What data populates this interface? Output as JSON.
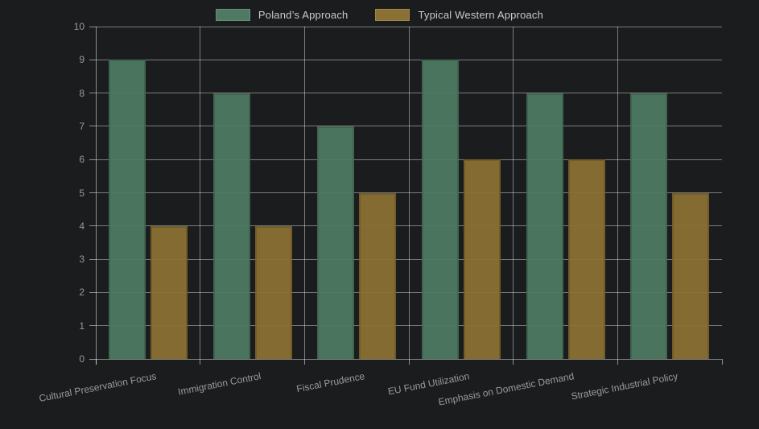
{
  "chart_data": {
    "type": "bar",
    "title": "",
    "categories": [
      "Cultural Preservation Focus",
      "Immigration Control",
      "Fiscal Prudence",
      "EU Fund Utilization",
      "Emphasis on Domestic Demand",
      "Strategic Industrial Policy"
    ],
    "series": [
      {
        "name": "Poland’s Approach",
        "color": "#4e7a63",
        "border_color": "#426a53",
        "values": [
          9,
          8,
          7,
          9,
          8,
          8
        ]
      },
      {
        "name": "Typical Western Approach",
        "color": "#8b7034",
        "border_color": "#77602a",
        "values": [
          4,
          4,
          5,
          6,
          6,
          5
        ]
      }
    ],
    "xlabel": "",
    "ylabel": "",
    "ylim": [
      0,
      10
    ],
    "yticks": [
      0,
      1,
      2,
      3,
      4,
      5,
      6,
      7,
      8,
      9,
      10
    ],
    "grid": true,
    "legend_position": "top"
  },
  "colors": {
    "background": "#1b1c1e",
    "gridline": "rgba(255,255,255,0.42)",
    "axis_line": "rgba(255,255,255,0.5)",
    "tick_label": "#9a9a9b",
    "legend_text": "#c9cacb"
  }
}
